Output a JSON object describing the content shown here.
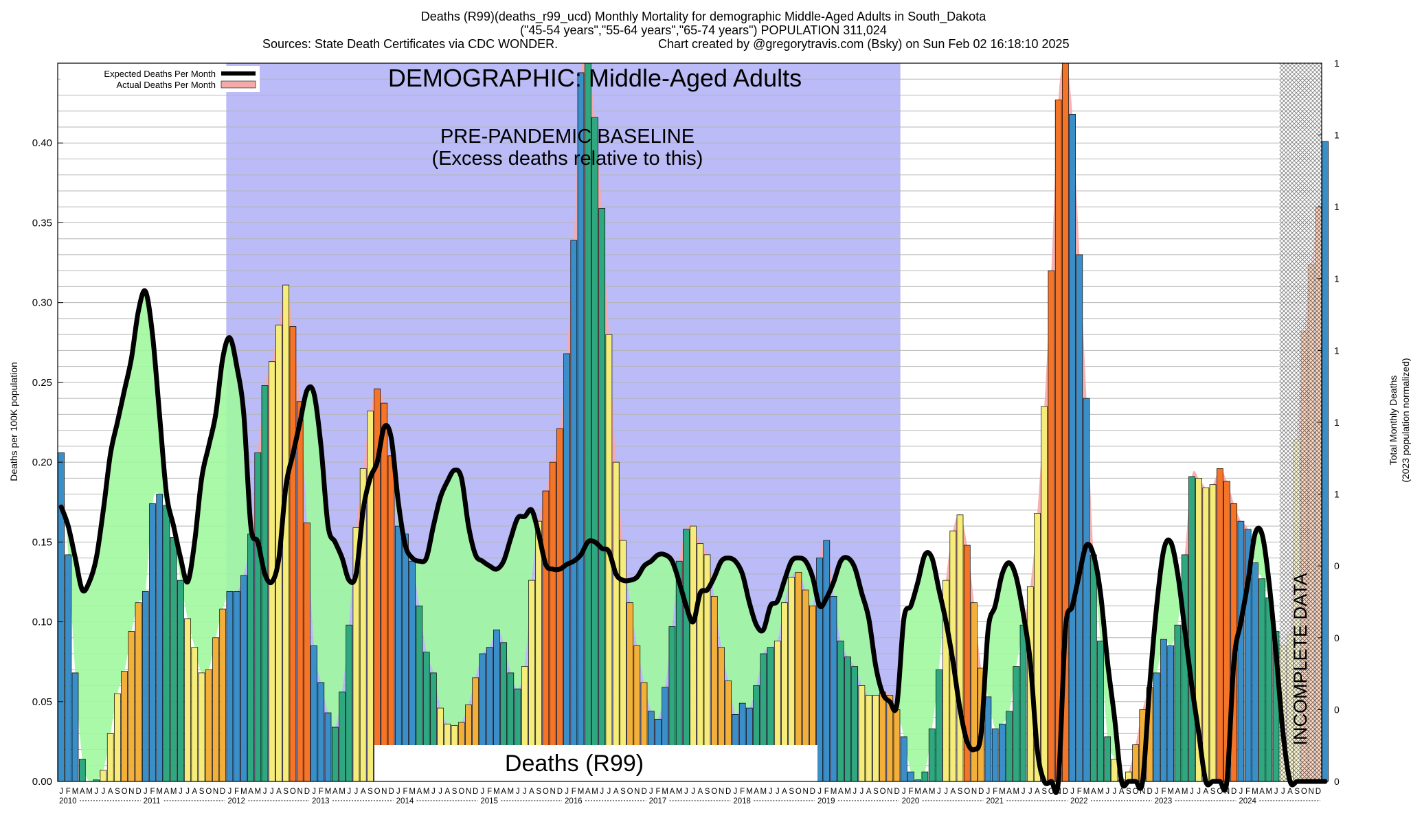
{
  "header": {
    "line1": "Deaths (R99)(deaths_r99_ucd) Monthly Mortality for demographic Middle-Aged Adults in South_Dakota",
    "line2": "(\"45-54 years\",\"55-64 years\",\"65-74 years\") POPULATION 311,024",
    "line3_left": "Sources: State Death Certificates via CDC WONDER.",
    "line3_right": "Chart created by @gregorytravis.com (Bsky) on Sun Feb 02 16:18:10 2025"
  },
  "chart_data": {
    "type": "bar",
    "ylabel": "Deaths per 100K population",
    "ylabel_right": "Total Monthly Deaths",
    "ylabel_right_sub": "(2023 population normalized)",
    "ylim": [
      0,
      0.45
    ],
    "y_ticks": [
      "0.00",
      "0.05",
      "0.10",
      "0.15",
      "0.20",
      "0.25",
      "0.30",
      "0.35",
      "0.40"
    ],
    "y_tick_values": [
      0,
      0.05,
      0.1,
      0.15,
      0.2,
      0.25,
      0.3,
      0.35,
      0.4
    ],
    "right_ticks": [
      "0",
      "0",
      "0",
      "0",
      "1",
      "1",
      "1",
      "1",
      "1",
      "1",
      "1"
    ],
    "month_letters": [
      "J",
      "F",
      "M",
      "A",
      "M",
      "J",
      "J",
      "A",
      "S",
      "O",
      "N",
      "D"
    ],
    "years": [
      "2010",
      "2011",
      "2012",
      "2013",
      "2014",
      "2015",
      "2016",
      "2017",
      "2018",
      "2019",
      "2020",
      "2021",
      "2022",
      "2023",
      "2024"
    ],
    "start_year": 2010,
    "grid": true,
    "legend_position": "top-left",
    "legend": [
      "Expected Deaths Per Month",
      "Actual Deaths Per Month"
    ],
    "annotations": {
      "demographic": "DEMOGRAPHIC: Middle-Aged Adults",
      "baseline": "PRE-PANDEMIC BASELINE",
      "baseline_sub": "(Excess deaths relative to this)",
      "cause": "Deaths (R99)",
      "incomplete": "INCOMPLETE DATA"
    },
    "baseline_period": {
      "start": "2012-01",
      "end": "2019-12"
    },
    "incomplete_period": {
      "start": "2024-07",
      "end": "2024-12"
    },
    "colors": {
      "baseline_bg": "#bbbbf8",
      "expected_line": "#000000",
      "below_fill": "#a0f8a0",
      "above_fill": "#f7a8a8",
      "winter": "#3b8fc8",
      "spring": "#2fa880",
      "summer": "#f5ec7a",
      "fall_low": "#f2b03a",
      "fall_high": "#f47428"
    },
    "series": [
      {
        "name": "Actual Deaths Per Month",
        "values": [
          0.206,
          0.142,
          0.068,
          0.014,
          0.0,
          0.001,
          0.007,
          0.03,
          0.055,
          0.069,
          0.094,
          0.112,
          0.119,
          0.174,
          0.18,
          0.173,
          0.153,
          0.126,
          0.102,
          0.084,
          0.068,
          0.07,
          0.09,
          0.108,
          0.119,
          0.119,
          0.129,
          0.155,
          0.206,
          0.248,
          0.263,
          0.286,
          0.311,
          0.285,
          0.238,
          0.162,
          0.085,
          0.062,
          0.043,
          0.034,
          0.056,
          0.098,
          0.159,
          0.196,
          0.232,
          0.246,
          0.237,
          0.204,
          0.16,
          0.155,
          0.138,
          0.11,
          0.081,
          0.068,
          0.046,
          0.036,
          0.035,
          0.037,
          0.048,
          0.065,
          0.08,
          0.084,
          0.095,
          0.087,
          0.068,
          0.058,
          0.072,
          0.126,
          0.163,
          0.182,
          0.2,
          0.221,
          0.268,
          0.339,
          0.444,
          0.455,
          0.416,
          0.359,
          0.28,
          0.2,
          0.151,
          0.112,
          0.085,
          0.062,
          0.044,
          0.039,
          0.059,
          0.097,
          0.138,
          0.158,
          0.16,
          0.149,
          0.142,
          0.116,
          0.084,
          0.063,
          0.042,
          0.049,
          0.046,
          0.06,
          0.08,
          0.084,
          0.088,
          0.112,
          0.128,
          0.131,
          0.12,
          0.11,
          0.14,
          0.151,
          0.116,
          0.088,
          0.078,
          0.072,
          0.06,
          0.054,
          0.054,
          0.056,
          0.054,
          0.045,
          0.028,
          0.006,
          0.001,
          0.006,
          0.033,
          0.07,
          0.126,
          0.157,
          0.167,
          0.148,
          0.112,
          0.071,
          0.053,
          0.033,
          0.036,
          0.044,
          0.072,
          0.098,
          0.122,
          0.168,
          0.235,
          0.32,
          0.427,
          0.451,
          0.418,
          0.33,
          0.24,
          0.142,
          0.088,
          0.028,
          0.014,
          0.001,
          0.006,
          0.023,
          0.045,
          0.059,
          0.068,
          0.089,
          0.085,
          0.098,
          0.142,
          0.191,
          0.19,
          0.184,
          0.186,
          0.196,
          0.188,
          0.174,
          0.163,
          0.158,
          0.137,
          0.127,
          0.115,
          0.094,
          0.085,
          0.092,
          0.214,
          0.282,
          0.324,
          0.36,
          0.401
        ]
      },
      {
        "name": "Expected Deaths Per Month",
        "values": [
          0.172,
          0.16,
          0.14,
          0.12,
          0.125,
          0.14,
          0.17,
          0.205,
          0.225,
          0.245,
          0.265,
          0.295,
          0.307,
          0.28,
          0.23,
          0.18,
          0.16,
          0.14,
          0.125,
          0.15,
          0.19,
          0.21,
          0.23,
          0.265,
          0.278,
          0.26,
          0.23,
          0.16,
          0.15,
          0.13,
          0.125,
          0.14,
          0.185,
          0.205,
          0.225,
          0.245,
          0.243,
          0.21,
          0.16,
          0.15,
          0.14,
          0.126,
          0.13,
          0.17,
          0.19,
          0.2,
          0.222,
          0.215,
          0.175,
          0.148,
          0.14,
          0.138,
          0.14,
          0.16,
          0.178,
          0.188,
          0.195,
          0.19,
          0.16,
          0.142,
          0.138,
          0.135,
          0.133,
          0.138,
          0.152,
          0.165,
          0.166,
          0.17,
          0.155,
          0.136,
          0.133,
          0.133,
          0.136,
          0.138,
          0.142,
          0.15,
          0.15,
          0.146,
          0.144,
          0.13,
          0.126,
          0.126,
          0.128,
          0.135,
          0.138,
          0.142,
          0.142,
          0.138,
          0.125,
          0.11,
          0.1,
          0.118,
          0.12,
          0.128,
          0.138,
          0.14,
          0.138,
          0.13,
          0.112,
          0.098,
          0.095,
          0.11,
          0.113,
          0.126,
          0.138,
          0.14,
          0.138,
          0.128,
          0.11,
          0.115,
          0.125,
          0.138,
          0.14,
          0.134,
          0.118,
          0.102,
          0.072,
          0.055,
          0.05,
          0.048,
          0.102,
          0.11,
          0.125,
          0.142,
          0.14,
          0.12,
          0.1,
          0.075,
          0.045,
          0.025,
          0.02,
          0.03,
          0.095,
          0.11,
          0.13,
          0.137,
          0.128,
          0.105,
          0.075,
          0.02,
          0.0,
          0.0,
          0.0,
          0.095,
          0.11,
          0.13,
          0.148,
          0.142,
          0.118,
          0.075,
          0.04,
          0.0,
          0.0,
          0.0,
          0.0,
          0.06,
          0.11,
          0.145,
          0.15,
          0.13,
          0.095,
          0.06,
          0.03,
          0.0,
          0.0,
          0.0,
          0.0,
          0.075,
          0.1,
          0.125,
          0.155,
          0.155,
          0.125,
          0.08,
          0.03,
          0.0,
          0.0,
          0.0,
          0.0,
          0.0,
          0.0
        ]
      }
    ]
  }
}
